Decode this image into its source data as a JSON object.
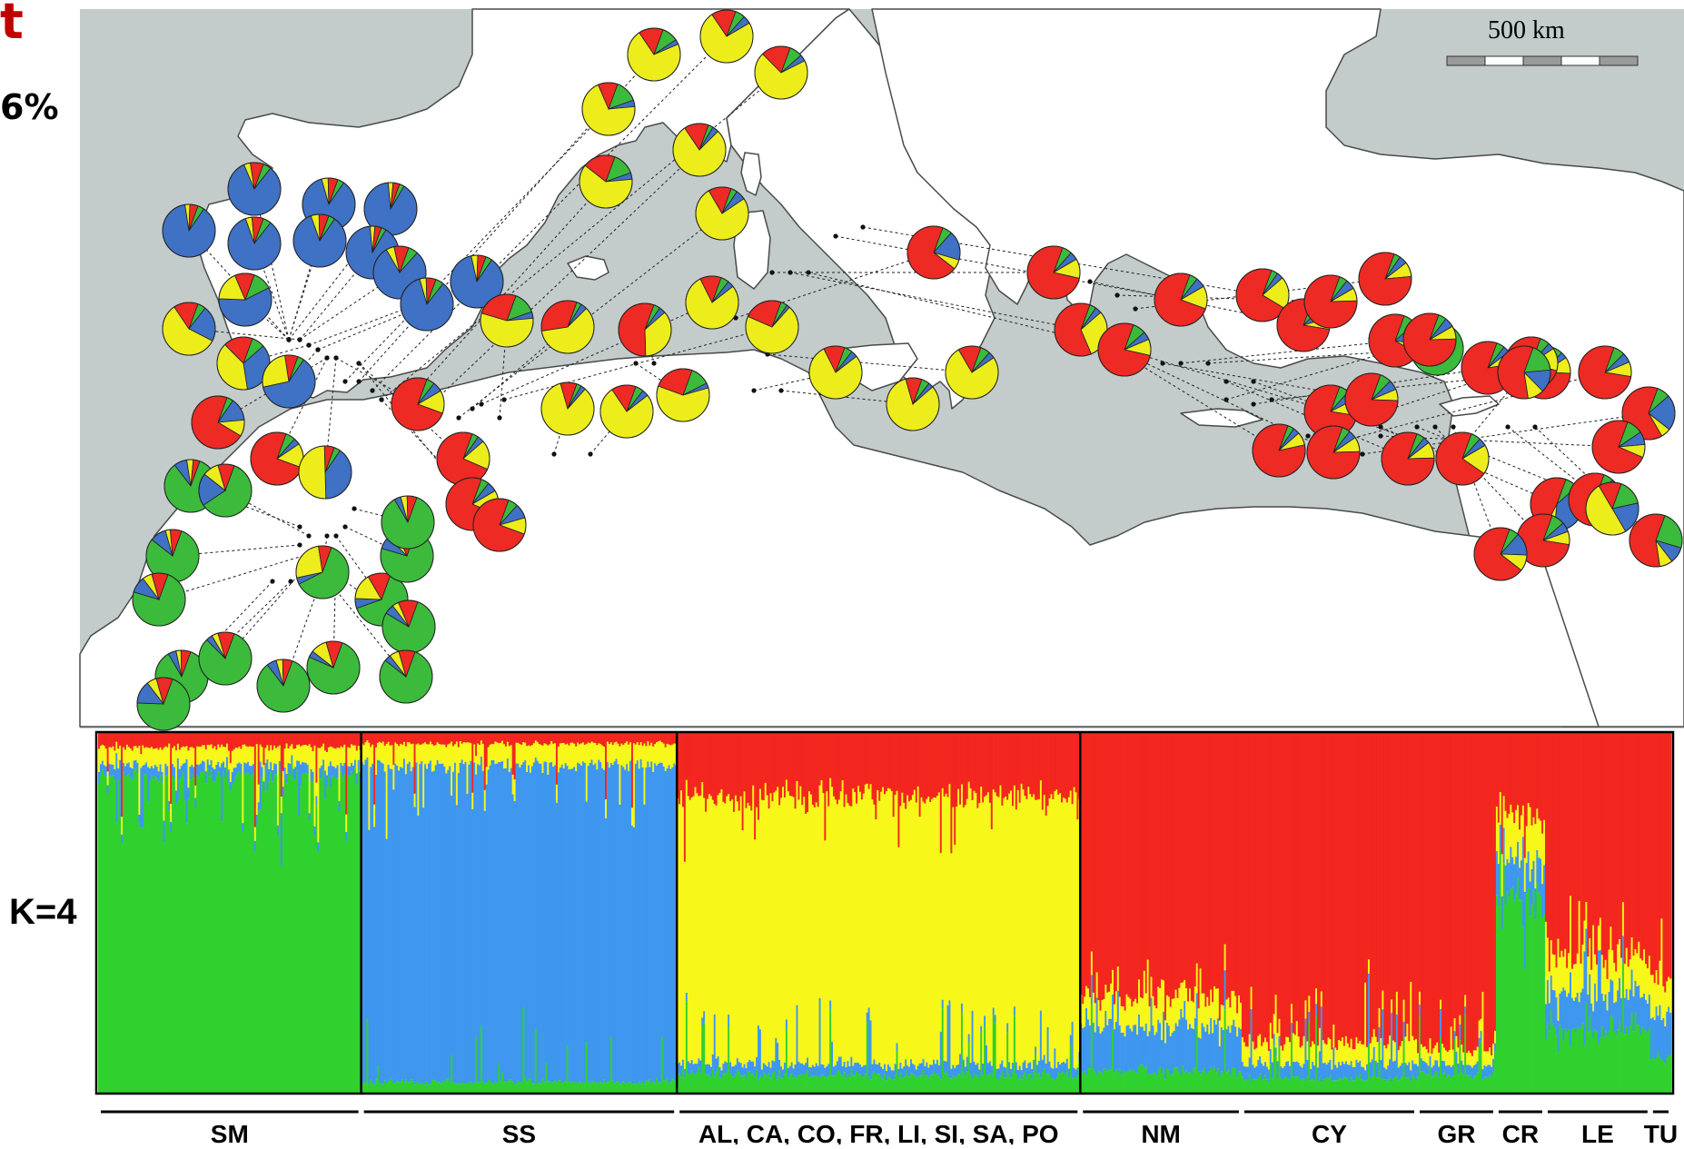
{
  "header": {
    "title_fragment": "t",
    "percent_fragment": "6%"
  },
  "scale": {
    "label": "500 km"
  },
  "structure": {
    "k_label": "K=4"
  },
  "colors": {
    "sea": "#c3ccca",
    "land": "#ffffff",
    "coast": "#4a4a4a",
    "green": "#3cba3c",
    "blue": "#3f71c4",
    "yellow": "#eded1c",
    "red": "#ee2a24",
    "bar_green": "#2fd12f",
    "bar_blue": "#3f97ee",
    "bar_yellow": "#f7f71a",
    "bar_red": "#f3271f"
  },
  "cluster_order": [
    "green",
    "blue",
    "yellow",
    "red"
  ],
  "groups": [
    {
      "label": "SM",
      "n": 150,
      "profile": [
        0.88,
        0.03,
        0.05,
        0.04
      ]
    },
    {
      "label": "SS",
      "n": 180,
      "profile": [
        0.03,
        0.88,
        0.06,
        0.03
      ]
    },
    {
      "label": "AL, CA,  CO, FR, LI, SI, SA, PO",
      "n": 230,
      "profile": [
        0.05,
        0.03,
        0.74,
        0.18
      ]
    },
    {
      "label": "NM",
      "n": 92,
      "profile": [
        0.06,
        0.12,
        0.08,
        0.74
      ]
    },
    {
      "label": "CY",
      "n": 100,
      "profile": [
        0.04,
        0.04,
        0.06,
        0.86
      ]
    },
    {
      "label": "GR",
      "n": 45,
      "profile": [
        0.05,
        0.03,
        0.04,
        0.88
      ]
    },
    {
      "label": "CR",
      "n": 28,
      "profile": [
        0.55,
        0.1,
        0.12,
        0.23
      ]
    },
    {
      "label": "LE",
      "n": 60,
      "profile": [
        0.18,
        0.1,
        0.1,
        0.62
      ]
    },
    {
      "label": "TU",
      "n": 12,
      "profile": [
        0.1,
        0.12,
        0.1,
        0.68
      ]
    }
  ],
  "pies": [
    {
      "p": [
        0.04,
        0.88,
        0.03,
        0.05
      ]
    },
    {
      "p": [
        0.05,
        0.83,
        0.04,
        0.08
      ]
    },
    {
      "p": [
        0.04,
        0.86,
        0.04,
        0.06
      ]
    },
    {
      "p": [
        0.03,
        0.9,
        0.03,
        0.04
      ]
    },
    {
      "p": [
        0.05,
        0.84,
        0.04,
        0.07
      ]
    },
    {
      "p": [
        0.04,
        0.85,
        0.05,
        0.06
      ]
    },
    {
      "p": [
        0.03,
        0.9,
        0.03,
        0.04
      ]
    },
    {
      "p": [
        0.06,
        0.8,
        0.05,
        0.09
      ]
    },
    {
      "p": [
        0.04,
        0.87,
        0.04,
        0.05
      ]
    },
    {
      "p": [
        0.05,
        0.85,
        0.04,
        0.06
      ]
    },
    {
      "p": [
        0.12,
        0.58,
        0.18,
        0.12
      ]
    },
    {
      "p": [
        0.05,
        0.22,
        0.58,
        0.15
      ]
    },
    {
      "p": [
        0.08,
        0.34,
        0.4,
        0.18
      ]
    },
    {
      "p": [
        0.04,
        0.62,
        0.26,
        0.08
      ]
    },
    {
      "p": [
        0.04,
        0.14,
        0.1,
        0.72
      ]
    },
    {
      "p": [
        0.06,
        0.04,
        0.15,
        0.75
      ]
    },
    {
      "p": [
        0.04,
        0.4,
        0.5,
        0.06
      ]
    },
    {
      "p": [
        0.05,
        0.06,
        0.14,
        0.75
      ]
    },
    {
      "p": [
        0.04,
        0.04,
        0.18,
        0.74
      ]
    },
    {
      "p": [
        0.05,
        0.06,
        0.15,
        0.74
      ]
    },
    {
      "p": [
        0.06,
        0.09,
        0.1,
        0.75
      ]
    },
    {
      "p": [
        0.84,
        0.08,
        0.04,
        0.04
      ]
    },
    {
      "p": [
        0.6,
        0.2,
        0.1,
        0.1
      ]
    },
    {
      "p": [
        0.8,
        0.1,
        0.03,
        0.07
      ]
    },
    {
      "p": [
        0.74,
        0.1,
        0.06,
        0.1
      ]
    },
    {
      "p": [
        0.86,
        0.05,
        0.03,
        0.06
      ]
    },
    {
      "p": [
        0.7,
        0.14,
        0.06,
        0.1
      ]
    },
    {
      "p": [
        0.82,
        0.04,
        0.04,
        0.1
      ]
    },
    {
      "p": [
        0.84,
        0.06,
        0.04,
        0.06
      ]
    },
    {
      "p": [
        0.76,
        0.04,
        0.1,
        0.1
      ]
    },
    {
      "p": [
        0.62,
        0.04,
        0.26,
        0.08
      ]
    },
    {
      "p": [
        0.64,
        0.06,
        0.16,
        0.14
      ]
    },
    {
      "p": [
        0.74,
        0.08,
        0.06,
        0.12
      ]
    },
    {
      "p": [
        0.86,
        0.04,
        0.04,
        0.06
      ]
    },
    {
      "p": [
        0.78,
        0.06,
        0.04,
        0.12
      ]
    },
    {
      "p": [
        0.8,
        0.04,
        0.06,
        0.1
      ]
    },
    {
      "p": [
        0.14,
        0.04,
        0.7,
        0.12
      ]
    },
    {
      "p": [
        0.1,
        0.03,
        0.72,
        0.15
      ]
    },
    {
      "p": [
        0.06,
        0.05,
        0.74,
        0.15
      ]
    },
    {
      "p": [
        0.08,
        0.04,
        0.7,
        0.18
      ]
    },
    {
      "p": [
        0.14,
        0.04,
        0.62,
        0.2
      ]
    },
    {
      "p": [
        0.03,
        0.04,
        0.78,
        0.15
      ]
    },
    {
      "p": [
        0.04,
        0.06,
        0.76,
        0.14
      ]
    },
    {
      "p": [
        0.05,
        0.04,
        0.78,
        0.13
      ]
    },
    {
      "p": [
        0.04,
        0.02,
        0.7,
        0.24
      ]
    },
    {
      "p": [
        0.03,
        0.04,
        0.6,
        0.33
      ]
    },
    {
      "p": [
        0.14,
        0.04,
        0.56,
        0.26
      ]
    },
    {
      "p": [
        0.03,
        0.03,
        0.84,
        0.1
      ]
    },
    {
      "p": [
        0.05,
        0.04,
        0.76,
        0.15
      ]
    },
    {
      "p": [
        0.12,
        0.03,
        0.6,
        0.25
      ]
    },
    {
      "p": [
        0.04,
        0.04,
        0.36,
        0.56
      ]
    },
    {
      "p": [
        0.05,
        0.04,
        0.78,
        0.13
      ]
    },
    {
      "p": [
        0.05,
        0.03,
        0.82,
        0.1
      ]
    },
    {
      "p": [
        0.06,
        0.04,
        0.76,
        0.14
      ]
    },
    {
      "p": [
        0.06,
        0.18,
        0.06,
        0.7
      ]
    },
    {
      "p": [
        0.06,
        0.05,
        0.12,
        0.77
      ]
    },
    {
      "p": [
        0.04,
        0.04,
        0.3,
        0.62
      ]
    },
    {
      "p": [
        0.08,
        0.05,
        0.1,
        0.77
      ]
    },
    {
      "p": [
        0.05,
        0.06,
        0.14,
        0.75
      ]
    },
    {
      "p": [
        0.04,
        0.04,
        0.2,
        0.72
      ]
    },
    {
      "p": [
        0.07,
        0.08,
        0.07,
        0.78
      ]
    },
    {
      "p": [
        0.05,
        0.06,
        0.08,
        0.81
      ]
    },
    {
      "p": [
        0.04,
        0.05,
        0.09,
        0.82
      ]
    },
    {
      "p": [
        0.06,
        0.06,
        0.1,
        0.78
      ]
    },
    {
      "p": [
        0.04,
        0.04,
        0.08,
        0.84
      ]
    },
    {
      "p": [
        0.05,
        0.05,
        0.09,
        0.81
      ]
    },
    {
      "p": [
        0.07,
        0.06,
        0.07,
        0.8
      ]
    },
    {
      "p": [
        0.08,
        0.14,
        0.06,
        0.72
      ]
    },
    {
      "p": [
        0.62,
        0.06,
        0.22,
        0.1
      ]
    },
    {
      "p": [
        0.05,
        0.04,
        0.1,
        0.81
      ]
    },
    {
      "p": [
        0.06,
        0.05,
        0.18,
        0.71
      ]
    },
    {
      "p": [
        0.05,
        0.06,
        0.08,
        0.81
      ]
    },
    {
      "p": [
        0.05,
        0.04,
        0.08,
        0.83
      ]
    },
    {
      "p": [
        0.06,
        0.04,
        0.1,
        0.8
      ]
    },
    {
      "p": [
        0.06,
        0.04,
        0.14,
        0.76
      ]
    },
    {
      "p": [
        0.07,
        0.06,
        0.09,
        0.78
      ]
    },
    {
      "p": [
        0.08,
        0.22,
        0.06,
        0.64
      ]
    },
    {
      "p": [
        0.1,
        0.08,
        0.08,
        0.74
      ]
    },
    {
      "p": [
        0.08,
        0.38,
        0.06,
        0.48
      ]
    },
    {
      "p": [
        0.06,
        0.1,
        0.06,
        0.78
      ]
    },
    {
      "p": [
        0.08,
        0.06,
        0.08,
        0.78
      ]
    },
    {
      "p": [
        0.06,
        0.14,
        0.1,
        0.7
      ]
    },
    {
      "p": [
        0.18,
        0.14,
        0.1,
        0.58
      ]
    },
    {
      "p": [
        0.16,
        0.2,
        0.5,
        0.14
      ]
    },
    {
      "p": [
        0.24,
        0.1,
        0.08,
        0.58
      ]
    }
  ]
}
